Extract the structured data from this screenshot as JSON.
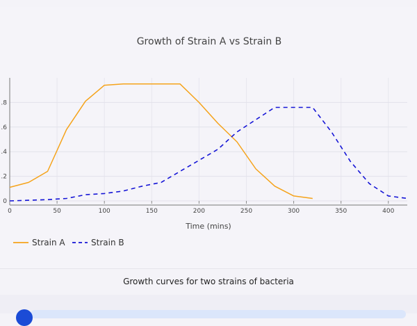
{
  "chart_data": {
    "type": "line",
    "title": "Growth of Strain A vs Strain B",
    "xlabel": "Time (mins)",
    "ylabel": "",
    "xlim": [
      0,
      420
    ],
    "ylim": [
      0,
      1.0
    ],
    "x_ticks": [
      "0",
      "50",
      "100",
      "150",
      "200",
      "250",
      "300",
      "350",
      "400"
    ],
    "y_ticks": [
      "0",
      ".2",
      ".4",
      ".6",
      ".8"
    ],
    "grid": true,
    "legend_position": "bottom-left",
    "series": [
      {
        "name": "Strain A",
        "color": "#f5a31a",
        "dash": "solid",
        "x": [
          0,
          20,
          40,
          60,
          80,
          100,
          120,
          140,
          160,
          180,
          200,
          220,
          240,
          260,
          280,
          300,
          320
        ],
        "values": [
          0.11,
          0.15,
          0.24,
          0.58,
          0.81,
          0.94,
          0.95,
          0.95,
          0.95,
          0.95,
          0.8,
          0.63,
          0.48,
          0.26,
          0.12,
          0.04,
          0.02
        ]
      },
      {
        "name": "Strain B",
        "color": "#1515d6",
        "dash": "dash",
        "x": [
          0,
          20,
          40,
          60,
          80,
          100,
          120,
          140,
          160,
          180,
          200,
          220,
          240,
          260,
          280,
          300,
          320,
          340,
          360,
          380,
          400,
          420
        ],
        "values": [
          0.0,
          0.005,
          0.01,
          0.02,
          0.05,
          0.06,
          0.08,
          0.12,
          0.15,
          0.24,
          0.33,
          0.42,
          0.56,
          0.66,
          0.76,
          0.76,
          0.76,
          0.56,
          0.32,
          0.14,
          0.04,
          0.02
        ]
      }
    ]
  },
  "caption": "Growth curves for two strains of bacteria"
}
